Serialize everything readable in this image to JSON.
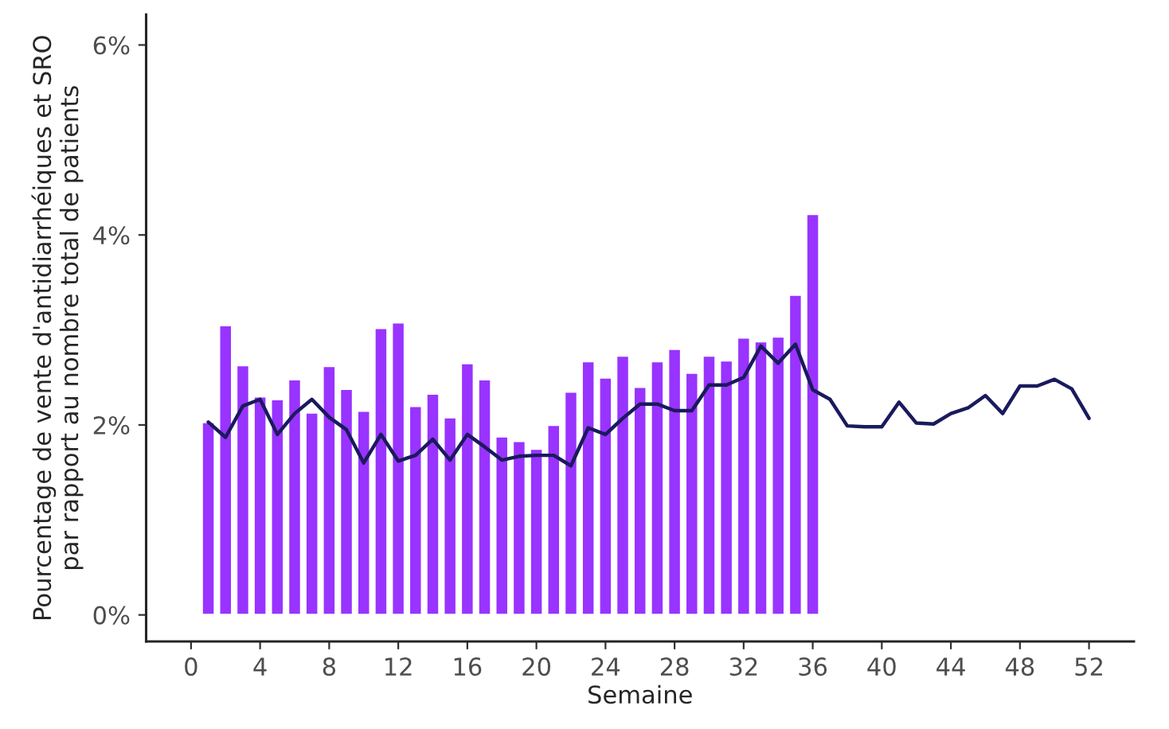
{
  "chart_data": {
    "type": "bar",
    "xlabel": "Semaine",
    "ylabel": "Pourcentage de vente d'antidiarrhéiques et SRO\npar rapport au nombre total de patients",
    "series": [
      {
        "color": "#9933ff",
        "x": [
          1,
          2,
          3,
          4,
          5,
          6,
          7,
          8,
          9,
          10,
          11,
          12,
          13,
          14,
          15,
          16,
          17,
          18,
          19,
          20,
          21,
          22,
          23,
          24,
          25,
          26,
          27,
          28,
          29,
          30,
          31,
          32,
          33,
          34,
          35,
          36
        ],
        "values": [
          2.03,
          3.05,
          2.63,
          2.3,
          2.27,
          2.48,
          2.13,
          2.62,
          2.38,
          2.15,
          3.02,
          3.08,
          2.2,
          2.33,
          2.08,
          2.65,
          2.48,
          1.88,
          1.83,
          1.75,
          2.0,
          2.35,
          2.67,
          2.5,
          2.73,
          2.4,
          2.67,
          2.8,
          2.55,
          2.73,
          2.68,
          2.92,
          2.88,
          2.93,
          3.37,
          4.22
        ]
      },
      {
        "type": "line",
        "color": "#1a1a5e",
        "x": [
          1,
          2,
          3,
          4,
          5,
          6,
          7,
          8,
          9,
          10,
          11,
          12,
          13,
          14,
          15,
          16,
          17,
          18,
          19,
          20,
          21,
          22,
          23,
          24,
          25,
          26,
          27,
          28,
          29,
          30,
          31,
          32,
          33,
          34,
          35,
          36,
          37,
          38,
          39,
          40,
          41,
          42,
          43,
          44,
          45,
          46,
          47,
          48,
          49,
          50,
          51,
          52
        ],
        "values": [
          2.03,
          1.87,
          2.2,
          2.27,
          1.9,
          2.12,
          2.27,
          2.08,
          1.95,
          1.6,
          1.9,
          1.62,
          1.68,
          1.85,
          1.63,
          1.9,
          1.77,
          1.63,
          1.67,
          1.68,
          1.68,
          1.57,
          1.97,
          1.9,
          2.07,
          2.22,
          2.22,
          2.15,
          2.15,
          2.42,
          2.42,
          2.5,
          2.83,
          2.65,
          2.85,
          2.37,
          2.27,
          1.99,
          1.98,
          1.98,
          2.24,
          2.02,
          2.01,
          2.12,
          2.18,
          2.31,
          2.12,
          2.41,
          2.41,
          2.48,
          2.38,
          2.07
        ]
      }
    ],
    "xlim": [
      -2.6,
      54.6
    ],
    "xticks": [
      0,
      4,
      8,
      12,
      16,
      20,
      24,
      28,
      32,
      36,
      40,
      44,
      48,
      52
    ],
    "ylim": [
      -0.28,
      6.32
    ],
    "yticks": [
      {
        "value": 0,
        "label": "0%"
      },
      {
        "value": 2,
        "label": "2%"
      },
      {
        "value": 4,
        "label": "4%"
      },
      {
        "value": 6,
        "label": "6%"
      }
    ],
    "grid": false,
    "legend": false,
    "line_style": "solid",
    "marker": "none"
  }
}
